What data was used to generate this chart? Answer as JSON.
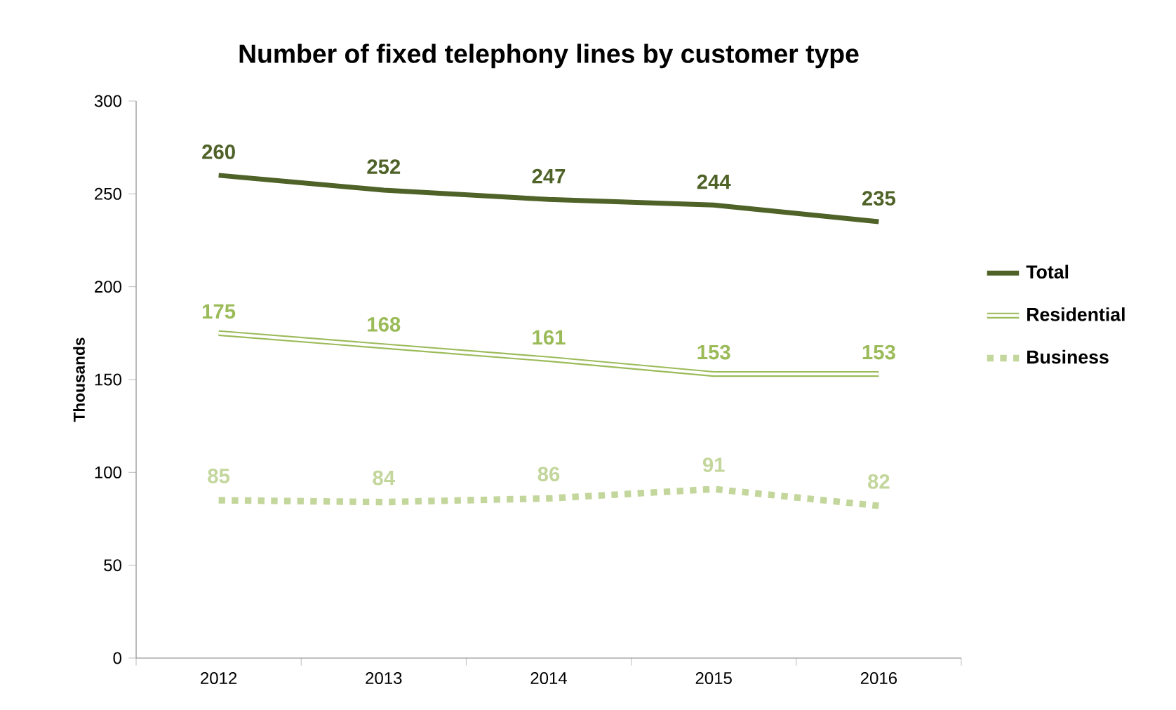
{
  "chart_data": {
    "type": "line",
    "title": "Number of fixed telephony lines by customer type",
    "ylabel": "Thousands",
    "categories": [
      "2012",
      "2013",
      "2014",
      "2015",
      "2016"
    ],
    "series": [
      {
        "name": "Total",
        "color": "#4f6228",
        "values": [
          260,
          252,
          247,
          244,
          235
        ],
        "line_style": "solid"
      },
      {
        "name": "Residential",
        "color": "#9bbb59",
        "values": [
          175,
          168,
          161,
          153,
          153
        ],
        "line_style": "solid"
      },
      {
        "name": "Business",
        "color": "#c3d69b",
        "values": [
          85,
          84,
          86,
          91,
          82
        ],
        "line_style": "dotted"
      }
    ],
    "ylim": [
      0,
      300
    ],
    "yticks": [
      0,
      50,
      100,
      150,
      200,
      250,
      300
    ],
    "grid": false,
    "legend": "right",
    "marker": "none",
    "data_labels": true
  }
}
